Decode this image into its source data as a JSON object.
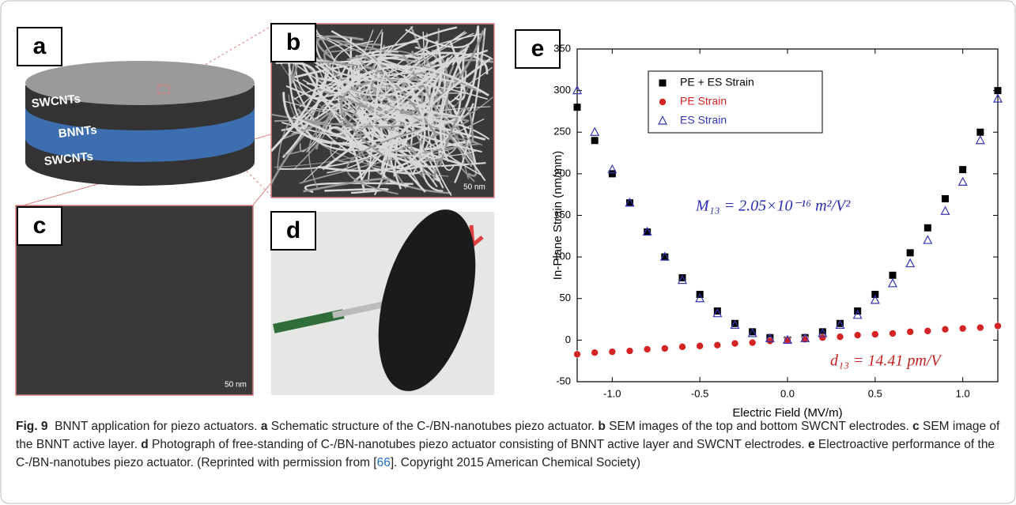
{
  "panels": {
    "a": {
      "label": "a",
      "layers": [
        "SWCNTs",
        "BNNTs",
        "SWCNTs"
      ]
    },
    "b": {
      "label": "b",
      "scale": "50 nm"
    },
    "c": {
      "label": "c",
      "scale": "50 nm"
    },
    "d": {
      "label": "d"
    }
  },
  "chart_data": {
    "type": "scatter",
    "label": "e",
    "xlabel": "Electric Field (MV/m)",
    "ylabel": "In-Plane Strain (nm/mm)",
    "xlim": [
      -1.2,
      1.2
    ],
    "ylim": [
      -50,
      350
    ],
    "xticks": [
      {
        "value": -1,
        "label": "-1.0"
      },
      {
        "value": -0.5,
        "label": "-0.5"
      },
      {
        "value": 0,
        "label": "0.0"
      },
      {
        "value": 0.5,
        "label": "0.5"
      },
      {
        "value": 1,
        "label": "1.0"
      }
    ],
    "yticks": [
      -50,
      0,
      50,
      100,
      150,
      200,
      250,
      300,
      350
    ],
    "legend": "upper left",
    "x": [
      -1.2,
      -1.1,
      -1.0,
      -0.9,
      -0.8,
      -0.7,
      -0.6,
      -0.5,
      -0.4,
      -0.3,
      -0.2,
      -0.1,
      0.0,
      0.1,
      0.2,
      0.3,
      0.4,
      0.5,
      0.6,
      0.7,
      0.8,
      0.9,
      1.0,
      1.1,
      1.2
    ],
    "series": [
      {
        "name": "PE + ES  Strain",
        "color": "#000000",
        "marker": "square",
        "values": [
          280,
          240,
          200,
          165,
          130,
          100,
          75,
          55,
          35,
          20,
          10,
          3,
          0,
          3,
          10,
          20,
          35,
          55,
          78,
          105,
          135,
          170,
          205,
          250,
          300
        ]
      },
      {
        "name": "PE Strain",
        "color": "#d42323",
        "marker": "circle",
        "values": [
          -17,
          -15,
          -14,
          -13,
          -11,
          -10,
          -8,
          -7,
          -6,
          -4,
          -3,
          -1,
          0,
          1,
          3,
          4,
          6,
          7,
          8,
          10,
          11,
          13,
          14,
          15,
          17
        ]
      },
      {
        "name": "ES Strain",
        "color": "#3535b5",
        "marker": "triangle",
        "values": [
          300,
          250,
          205,
          165,
          130,
          100,
          72,
          50,
          32,
          18,
          8,
          2,
          0,
          2,
          8,
          18,
          30,
          48,
          68,
          92,
          120,
          155,
          190,
          240,
          290
        ]
      }
    ],
    "annotations": [
      {
        "text": "M₁₃ = 2.05×10⁻¹⁶ m²/V²",
        "color": "#2b2bb0"
      },
      {
        "text": "d₁₃ = 14.41 pm/V",
        "color": "#c82020"
      }
    ]
  },
  "caption": [
    {
      "text": "Fig. 9",
      "bold": true
    },
    {
      "text": "  BNNT application for piezo actuators. "
    },
    {
      "text": "a",
      "bold": true
    },
    {
      "text": " Schematic structure of the C-/BN-nanotubes piezo actuator. "
    },
    {
      "text": "b",
      "bold": true
    },
    {
      "text": " SEM images of the top and bottom SWCNT electrodes. "
    },
    {
      "text": "c",
      "bold": true
    },
    {
      "text": " SEM image of the BNNT active layer. "
    },
    {
      "text": "d",
      "bold": true
    },
    {
      "text": " Photograph of free-standing of C-/BN-nanotubes piezo actuator consisting of BNNT active layer and SWCNT electrodes. "
    },
    {
      "text": "e",
      "bold": true
    },
    {
      "text": " Electroactive performance of the C-/BN-nanotubes piezo actuator. (Reprinted with permission from ["
    },
    {
      "text": "66",
      "link": true
    },
    {
      "text": "]. Copyright 2015 American Chemical Society)"
    }
  ]
}
